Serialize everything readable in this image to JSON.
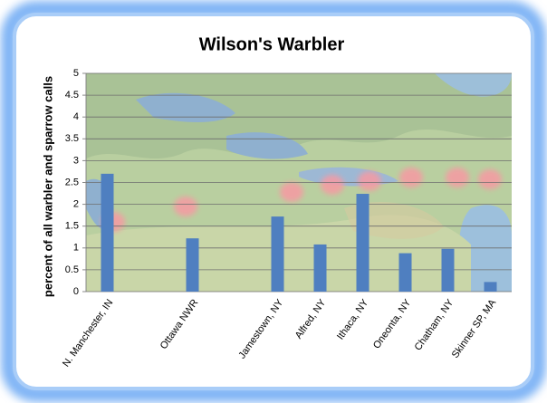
{
  "chart_data": {
    "type": "bar",
    "title": "Wilson's Warbler",
    "y_label": "percent of all warbler and sparrow calls",
    "categories": [
      "N. Manchester, IN",
      null,
      "Ottawa NWR",
      null,
      "Jamestown, NY",
      "Alfred, NY",
      "Ithaca, NY",
      "Oneonta, NY",
      "Chatham, NY",
      "Skinner SP, MA"
    ],
    "values": [
      2.7,
      null,
      1.22,
      null,
      1.72,
      1.08,
      2.24,
      0.88,
      0.98,
      0.22
    ],
    "color": "#4f7fc0",
    "ylim": [
      0,
      5
    ],
    "yticks": [
      0,
      0.5,
      1,
      1.5,
      2,
      2.5,
      3,
      3.5,
      4,
      4.5,
      5
    ],
    "grid": true
  }
}
